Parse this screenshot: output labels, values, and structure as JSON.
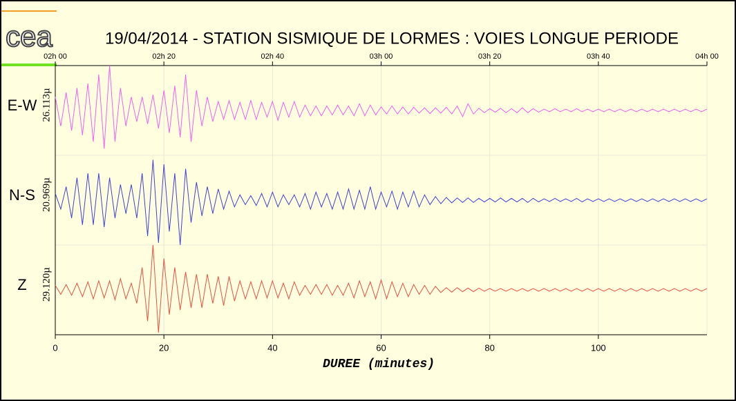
{
  "chart_data": {
    "type": "seismogram",
    "logo": "cea",
    "title": "19/04/2014  -  STATION SISMIQUE DE LORMES : VOIES LONGUE PERIODE",
    "x_label": "DUREE (minutes)",
    "xlim": [
      0,
      120
    ],
    "xticks": [
      0,
      20,
      40,
      60,
      80,
      100
    ],
    "top_ticks": [
      {
        "value": 0,
        "label": "02h 00"
      },
      {
        "value": 20,
        "label": "02h 20"
      },
      {
        "value": 40,
        "label": "02h 40"
      },
      {
        "value": 60,
        "label": "03h 00"
      },
      {
        "value": 80,
        "label": "03h 20"
      },
      {
        "value": 100,
        "label": "03h 40"
      },
      {
        "value": 120,
        "label": "04h 00"
      }
    ],
    "grid": true,
    "x": [
      0,
      1,
      2,
      3,
      4,
      5,
      6,
      7,
      8,
      9,
      10,
      11,
      12,
      13,
      14,
      15,
      16,
      17,
      18,
      19,
      20,
      21,
      22,
      23,
      24,
      25,
      26,
      27,
      28,
      29,
      30,
      31,
      32,
      33,
      34,
      35,
      36,
      37,
      38,
      39,
      40,
      41,
      42,
      43,
      44,
      45,
      46,
      47,
      48,
      49,
      50,
      51,
      52,
      53,
      54,
      55,
      56,
      57,
      58,
      59,
      60,
      61,
      62,
      63,
      64,
      65,
      66,
      67,
      68,
      69,
      70,
      71,
      72,
      73,
      74,
      75,
      76,
      77,
      78,
      79,
      80,
      81,
      82,
      83,
      84,
      85,
      86,
      87,
      88,
      89,
      90,
      91,
      92,
      93,
      94,
      95,
      96,
      97,
      98,
      99,
      100,
      101,
      102,
      103,
      104,
      105,
      106,
      107,
      108,
      109,
      110,
      111,
      112,
      113,
      114,
      115,
      116,
      117,
      118,
      119,
      120
    ],
    "series": [
      {
        "name": "E-W",
        "scale_label": "26.113µ",
        "color": "#f060f0",
        "ylim": [
          -1,
          1
        ],
        "values": [
          0.3,
          -0.35,
          0.4,
          -0.45,
          0.5,
          -0.55,
          0.6,
          -0.7,
          0.8,
          -0.85,
          1.0,
          -0.7,
          0.5,
          -0.35,
          0.3,
          -0.25,
          0.3,
          -0.3,
          0.35,
          -0.4,
          0.45,
          -0.5,
          0.55,
          -0.6,
          0.8,
          -0.7,
          0.45,
          -0.35,
          0.3,
          -0.25,
          0.2,
          -0.2,
          0.22,
          -0.2,
          0.18,
          -0.2,
          0.22,
          -0.2,
          0.18,
          -0.15,
          0.2,
          -0.22,
          0.18,
          -0.15,
          0.2,
          -0.15,
          0.12,
          -0.12,
          0.1,
          -0.12,
          0.1,
          -0.1,
          0.12,
          -0.1,
          0.1,
          -0.12,
          0.15,
          -0.12,
          0.12,
          -0.1,
          0.08,
          -0.08,
          0.1,
          -0.08,
          0.08,
          -0.08,
          0.07,
          -0.06,
          0.06,
          -0.07,
          0.06,
          -0.06,
          0.07,
          -0.08,
          0.1,
          -0.14,
          0.15,
          -0.08,
          0.05,
          -0.05,
          0.04,
          -0.04,
          0.05,
          -0.05,
          0.04,
          -0.05,
          0.06,
          -0.05,
          0.04,
          -0.04,
          0.03,
          -0.03,
          0.04,
          -0.03,
          0.03,
          -0.03,
          0.04,
          -0.03,
          0.03,
          -0.03,
          0.03,
          -0.03,
          0.03,
          -0.03,
          0.03,
          -0.03,
          0.03,
          -0.03,
          0.03,
          -0.03,
          0.03,
          -0.03,
          0.03,
          -0.03,
          0.03,
          -0.03,
          0.03,
          -0.03,
          0.03,
          -0.03,
          0.03
        ]
      },
      {
        "name": "N-S",
        "scale_label": "20.969µ",
        "color": "#4040d8",
        "ylim": [
          -1,
          1
        ],
        "values": [
          0.15,
          -0.2,
          0.3,
          -0.4,
          0.5,
          -0.55,
          0.6,
          -0.55,
          0.6,
          -0.6,
          0.5,
          -0.4,
          0.35,
          -0.3,
          0.35,
          -0.4,
          0.6,
          -0.8,
          0.9,
          -0.95,
          0.8,
          -0.7,
          0.6,
          -1.0,
          0.7,
          -0.5,
          0.4,
          -0.35,
          0.3,
          -0.3,
          0.25,
          -0.2,
          0.2,
          -0.15,
          0.12,
          -0.1,
          0.1,
          -0.12,
          0.15,
          -0.15,
          0.18,
          -0.15,
          0.12,
          -0.1,
          0.12,
          -0.15,
          0.15,
          -0.2,
          0.18,
          -0.15,
          0.15,
          -0.2,
          0.18,
          -0.2,
          0.25,
          -0.2,
          0.22,
          -0.2,
          0.3,
          -0.2,
          0.18,
          -0.15,
          0.2,
          -0.2,
          0.18,
          -0.15,
          0.2,
          -0.15,
          0.12,
          -0.1,
          0.08,
          -0.08,
          0.06,
          -0.06,
          0.05,
          -0.05,
          0.05,
          -0.05,
          0.04,
          -0.04,
          0.04,
          -0.04,
          0.05,
          -0.04,
          0.04,
          -0.04,
          0.04,
          -0.05,
          0.04,
          -0.04,
          0.03,
          -0.03,
          0.04,
          -0.03,
          0.03,
          -0.03,
          0.04,
          -0.04,
          0.03,
          -0.03,
          0.03,
          -0.03,
          0.03,
          -0.03,
          0.03,
          -0.03,
          0.03,
          -0.03,
          0.03,
          -0.03,
          0.03,
          -0.03,
          0.03,
          -0.03,
          0.03,
          -0.03,
          0.03,
          -0.03,
          0.03,
          -0.03,
          0.03
        ]
      },
      {
        "name": "Z",
        "scale_label": "29.120µ",
        "color": "#e85040",
        "ylim": [
          -1,
          1
        ],
        "values": [
          0.1,
          -0.1,
          0.12,
          -0.12,
          0.15,
          -0.15,
          0.18,
          -0.2,
          0.2,
          -0.18,
          0.2,
          -0.22,
          0.25,
          -0.2,
          0.15,
          -0.3,
          0.5,
          -0.7,
          1.0,
          -0.95,
          0.7,
          -0.55,
          0.5,
          -0.45,
          0.4,
          -0.4,
          0.35,
          -0.4,
          0.35,
          -0.3,
          0.3,
          -0.35,
          0.3,
          -0.25,
          0.2,
          -0.2,
          0.18,
          -0.2,
          0.2,
          -0.18,
          0.2,
          -0.18,
          0.15,
          -0.2,
          0.18,
          -0.12,
          0.1,
          -0.1,
          0.12,
          -0.1,
          0.12,
          -0.12,
          0.1,
          -0.12,
          0.15,
          -0.18,
          0.2,
          -0.15,
          0.18,
          -0.2,
          0.22,
          -0.2,
          0.18,
          -0.15,
          0.15,
          -0.15,
          0.12,
          -0.1,
          0.1,
          -0.1,
          0.08,
          -0.06,
          0.05,
          -0.05,
          0.05,
          -0.04,
          0.04,
          -0.04,
          0.04,
          -0.03,
          0.03,
          -0.03,
          0.03,
          -0.03,
          0.03,
          -0.03,
          0.03,
          -0.03,
          0.03,
          -0.03,
          0.03,
          -0.03,
          0.03,
          -0.03,
          0.03,
          -0.03,
          0.03,
          -0.03,
          0.03,
          -0.03,
          0.03,
          -0.03,
          0.03,
          -0.03,
          0.03,
          -0.03,
          0.03,
          -0.03,
          0.03,
          -0.03,
          0.03,
          -0.03,
          0.03,
          -0.03,
          0.03,
          -0.03,
          0.03,
          -0.03,
          0.03,
          -0.03,
          0.03
        ]
      }
    ]
  }
}
